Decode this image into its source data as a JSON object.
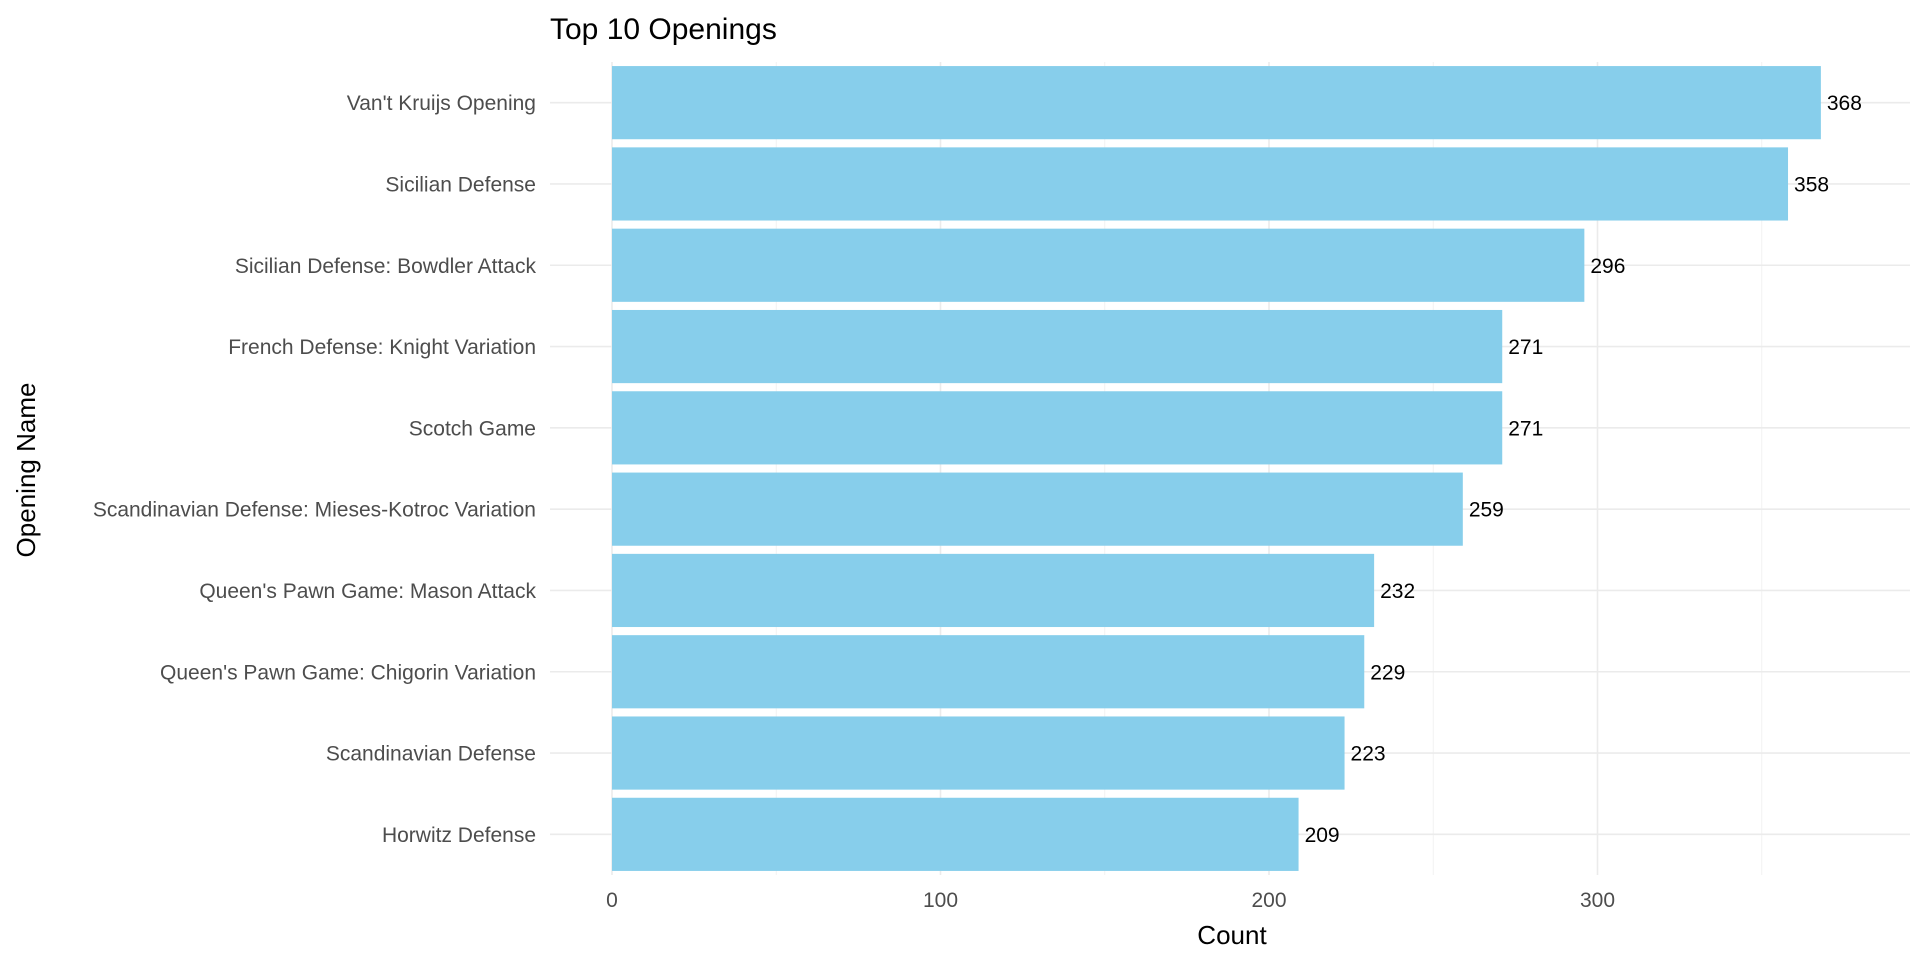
{
  "chart_data": {
    "type": "bar",
    "orientation": "horizontal",
    "title": "Top 10 Openings",
    "xlabel": "Count",
    "ylabel": "Opening Name",
    "categories": [
      "Van't Kruijs Opening",
      "Sicilian Defense",
      "Sicilian Defense: Bowdler Attack",
      "French Defense: Knight Variation",
      "Scotch Game",
      "Scandinavian Defense: Mieses-Kotroc Variation",
      "Queen's Pawn Game: Mason Attack",
      "Queen's Pawn Game: Chigorin Variation",
      "Scandinavian Defense",
      "Horwitz Defense"
    ],
    "values": [
      368,
      358,
      296,
      271,
      271,
      259,
      232,
      229,
      223,
      209
    ],
    "data_labels": [
      "368",
      "358",
      "296",
      "271",
      "271",
      "259",
      "232",
      "229",
      "223",
      "209"
    ],
    "x_ticks": [
      0,
      100,
      200,
      300
    ],
    "x_tick_labels": [
      "0",
      "100",
      "200",
      "300"
    ],
    "xlim": [
      0,
      386
    ],
    "grid": true,
    "legend": "none",
    "bar_color": "#87CEEB"
  }
}
